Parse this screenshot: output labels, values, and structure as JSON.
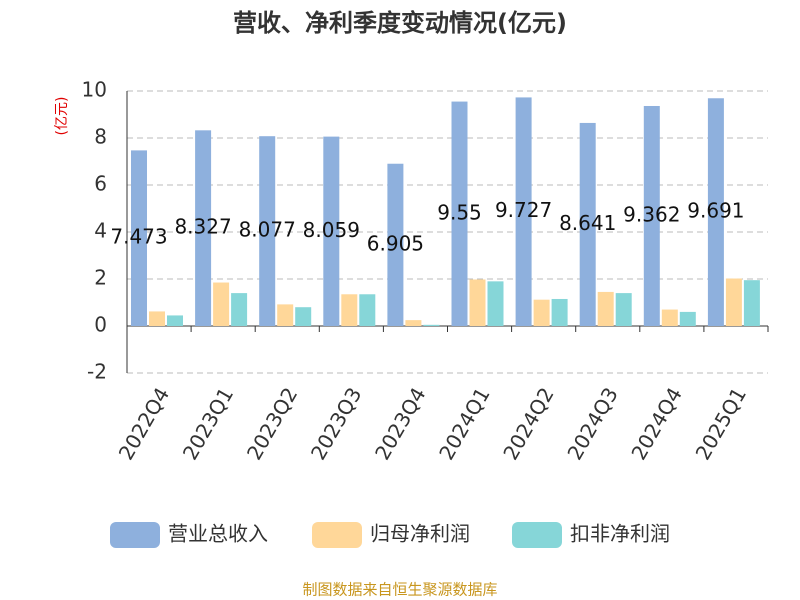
{
  "chart_data": {
    "type": "bar",
    "title": "营收、净利季度变动情况(亿元)",
    "y_label": "(亿元)",
    "categories": [
      "2022Q4",
      "2023Q1",
      "2023Q2",
      "2023Q3",
      "2023Q4",
      "2024Q1",
      "2024Q2",
      "2024Q3",
      "2024Q4",
      "2025Q1"
    ],
    "series": [
      {
        "name": "营业总收入",
        "color": "#8eb0dd",
        "values": [
          7.473,
          8.327,
          8.077,
          8.059,
          6.905,
          9.55,
          9.727,
          8.641,
          9.362,
          9.691
        ],
        "show_labels": true
      },
      {
        "name": "归母净利润",
        "color": "#ffd799",
        "values": [
          0.62,
          1.85,
          0.92,
          1.35,
          0.25,
          1.98,
          1.12,
          1.45,
          0.7,
          2.02
        ]
      },
      {
        "name": "扣非净利润",
        "color": "#86d6d8",
        "values": [
          0.45,
          1.4,
          0.8,
          1.35,
          0.05,
          1.9,
          1.15,
          1.4,
          0.6,
          1.95
        ]
      }
    ],
    "ylim": [
      -2,
      10
    ],
    "yticks": [
      -2,
      0,
      2,
      4,
      6,
      8,
      10
    ],
    "grid": true,
    "source": "制图数据来自恒生聚源数据库"
  }
}
